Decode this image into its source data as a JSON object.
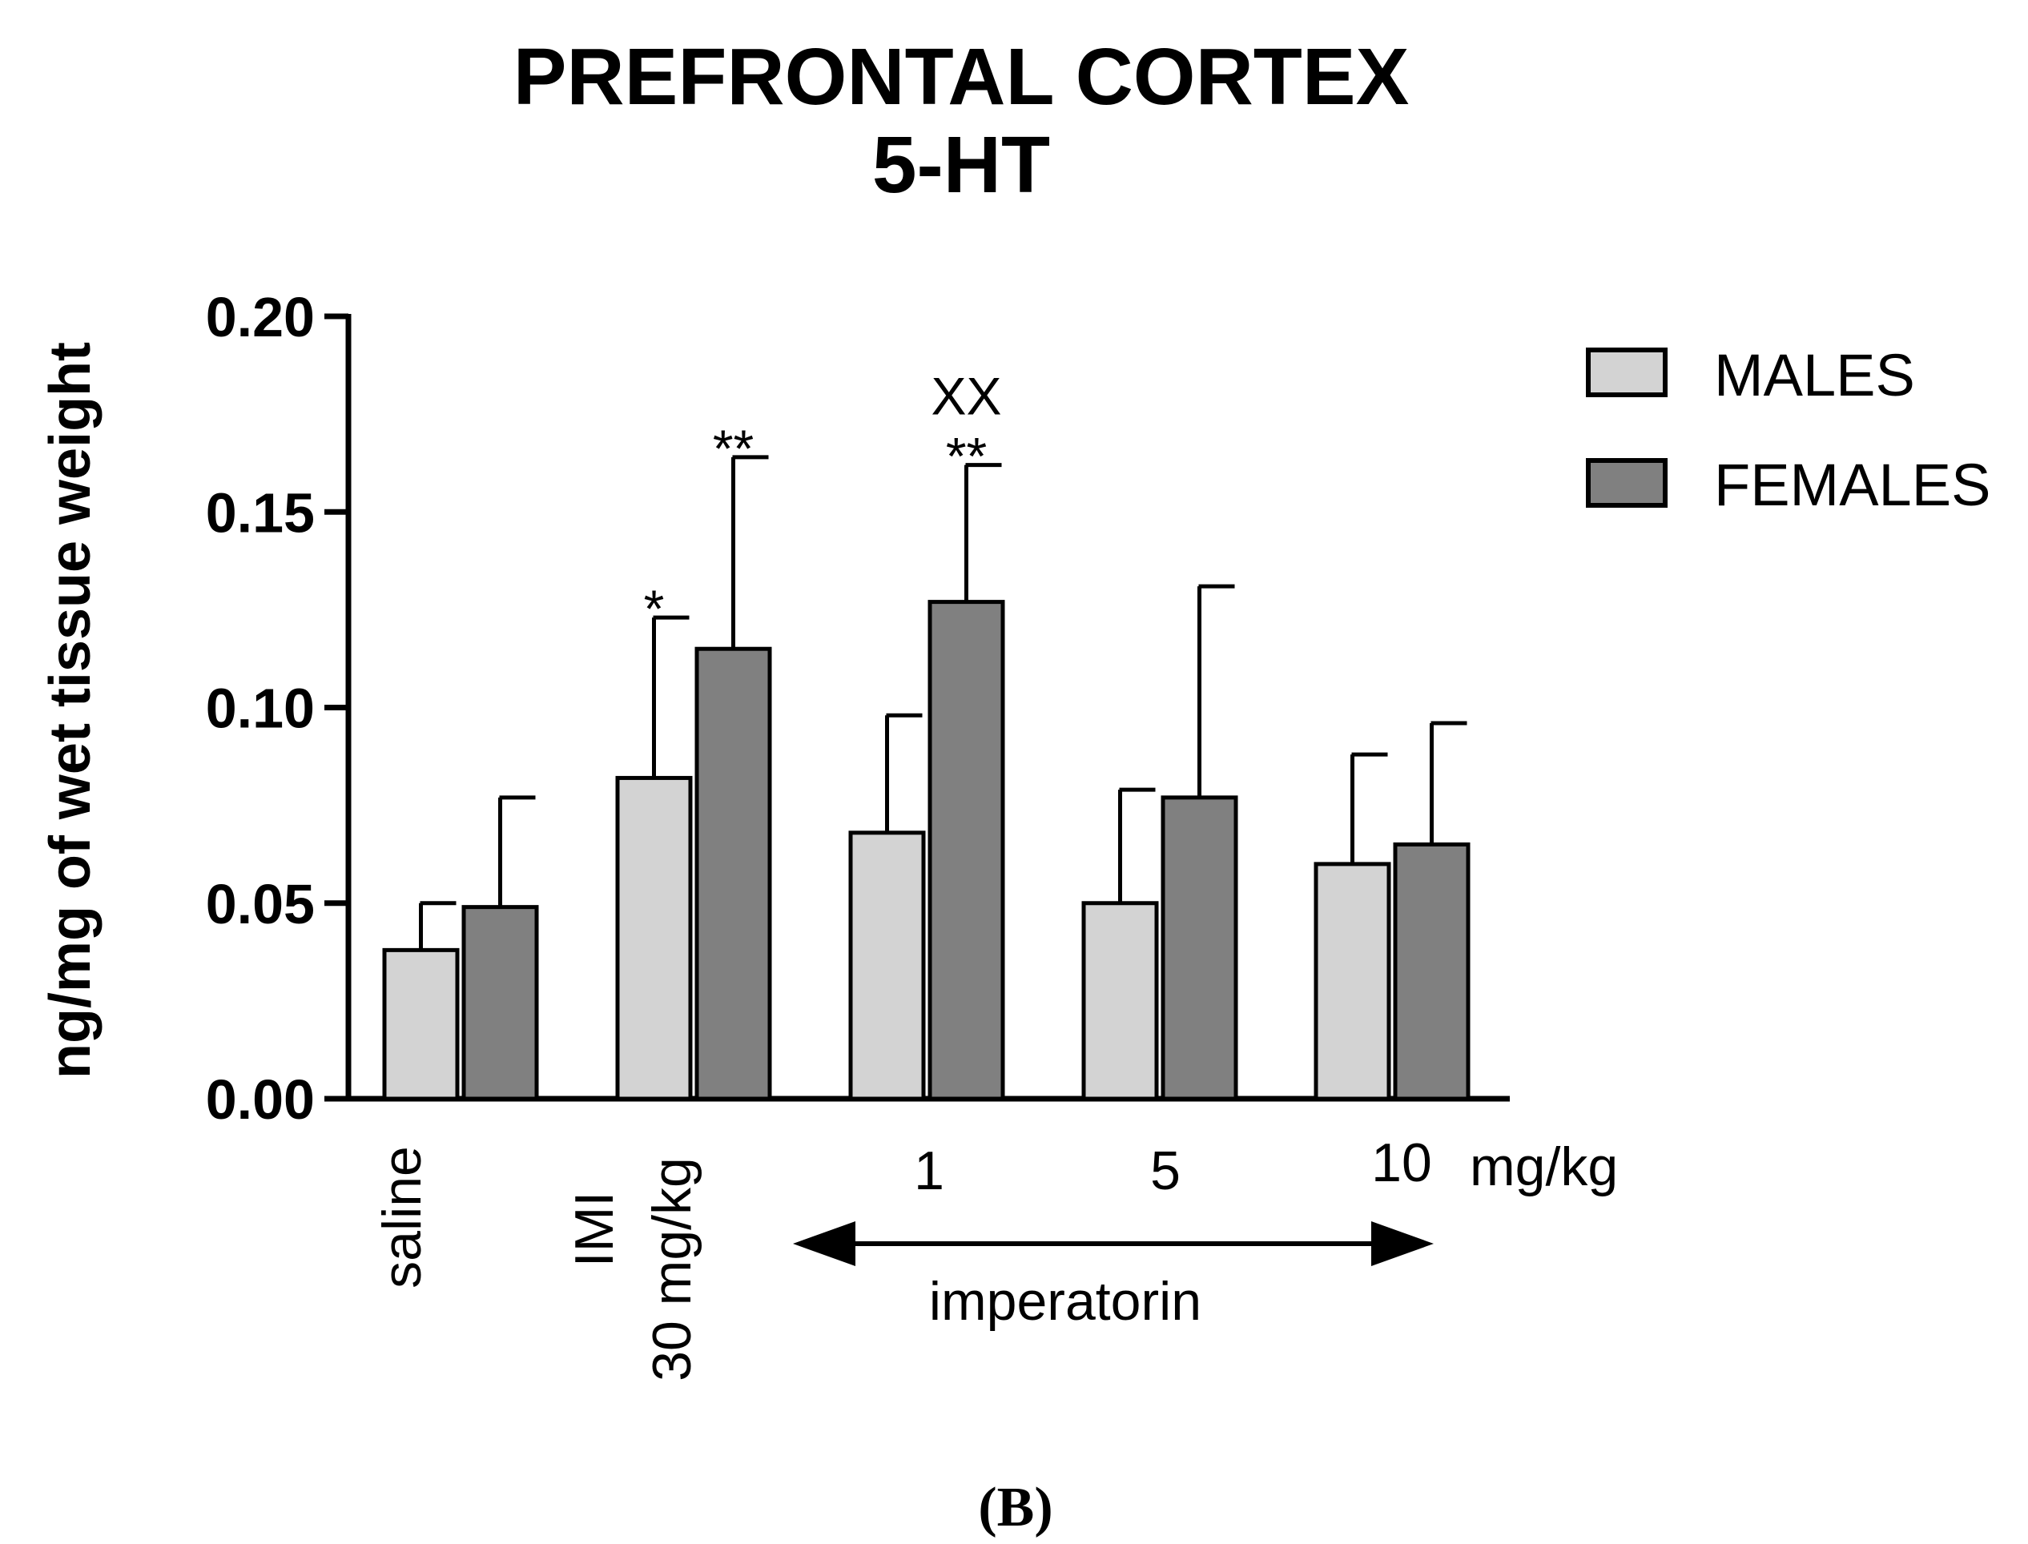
{
  "chart_data": {
    "type": "bar",
    "title": [
      "PREFRONTAL CORTEX",
      "5-HT"
    ],
    "ylabel": "ng/mg of wet tissue weight",
    "xlabel": "",
    "ylim": [
      0,
      0.2
    ],
    "yticks": [
      "0.00",
      "0.05",
      "0.10",
      "0.15",
      "0.20"
    ],
    "ytick_values": [
      0,
      0.05,
      0.1,
      0.15,
      0.2
    ],
    "categories": [
      "saline",
      "IMI 30 mg/kg",
      "1",
      "5",
      "10"
    ],
    "series": [
      {
        "name": "MALES",
        "color": "#d3d3d3",
        "values": [
          0.038,
          0.082,
          0.068,
          0.05,
          0.06
        ],
        "errors": [
          0.012,
          0.041,
          0.03,
          0.029,
          0.028
        ]
      },
      {
        "name": "FEMALES",
        "color": "#808080",
        "values": [
          0.049,
          0.115,
          0.127,
          0.077,
          0.065
        ],
        "errors": [
          0.028,
          0.049,
          0.035,
          0.054,
          0.031
        ]
      }
    ],
    "category_labels": {
      "saline": "saline",
      "imi_line1": "IMI",
      "imi_line2": "30 mg/kg",
      "dose_1": "1",
      "dose_5": "5",
      "dose_10": "10",
      "unit": "mg/kg",
      "group": "imperatorin"
    },
    "annotations": [
      {
        "category": 1,
        "series": 0,
        "text": "*"
      },
      {
        "category": 1,
        "series": 1,
        "text": "**"
      },
      {
        "category": 2,
        "series": 1,
        "text": "**"
      },
      {
        "category": 2,
        "series": 1,
        "text": "XX"
      }
    ],
    "legend": {
      "position": "top-right"
    },
    "panel_label": "(B)"
  }
}
